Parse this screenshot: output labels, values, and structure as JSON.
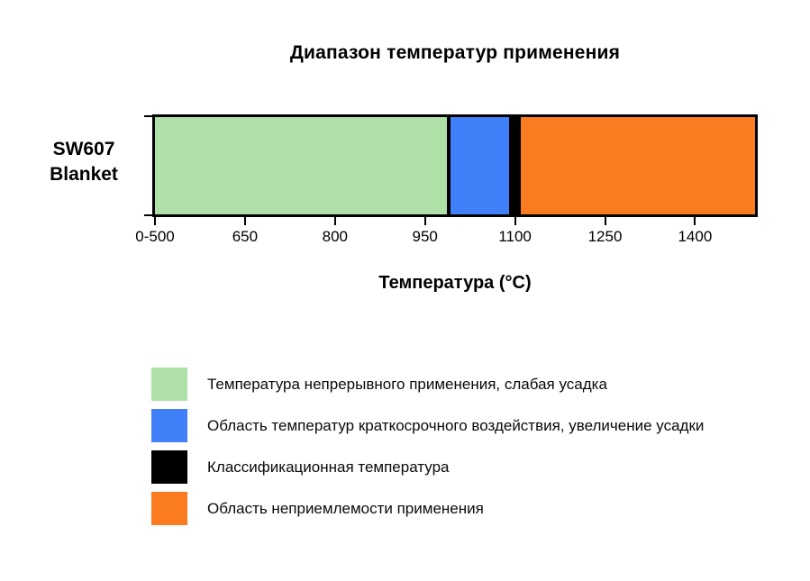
{
  "title": "Диапазон температур применения",
  "row_label": {
    "line1": "SW607",
    "line2": "Blanket"
  },
  "colors": {
    "continuous_green": "#aee0a8",
    "short_term_blue": "#4080f8",
    "classification_black": "#000000",
    "unacceptable_orange": "#fb7b20",
    "axis_black": "#000000",
    "background": "#ffffff"
  },
  "chart_data": {
    "type": "bar",
    "orientation": "horizontal",
    "title": "Диапазон температур применения",
    "categories": [
      "SW607 Blanket"
    ],
    "xlabel": "Температура (°C)",
    "xlim": [
      500,
      1500
    ],
    "grid": false,
    "legend_position": "bottom-left",
    "ticks": [
      {
        "value": 500,
        "label": "0-500"
      },
      {
        "value": 650,
        "label": "650"
      },
      {
        "value": 800,
        "label": "800"
      },
      {
        "value": 950,
        "label": "950"
      },
      {
        "value": 1100,
        "label": "1100"
      },
      {
        "value": 1250,
        "label": "1250"
      },
      {
        "value": 1400,
        "label": "1400"
      }
    ],
    "segments": [
      {
        "name": "continuous-use",
        "start": 500,
        "end": 990,
        "color": "#aee0a8",
        "label": "Температура непрерывного применения, слабая усадка"
      },
      {
        "name": "short-term-exposure",
        "start": 990,
        "end": 1090,
        "color": "#4080f8",
        "label": "Область температур краткосрочного воздействия, увеличение усадки"
      },
      {
        "name": "classification-temperature",
        "start": 1090,
        "end": 1110,
        "color": "#000000",
        "label": "Классификационная температура",
        "nominal_value": 1100
      },
      {
        "name": "unacceptable-use",
        "start": 1110,
        "end": 1500,
        "color": "#fb7b20",
        "label": "Область неприемлемости применения"
      }
    ]
  }
}
